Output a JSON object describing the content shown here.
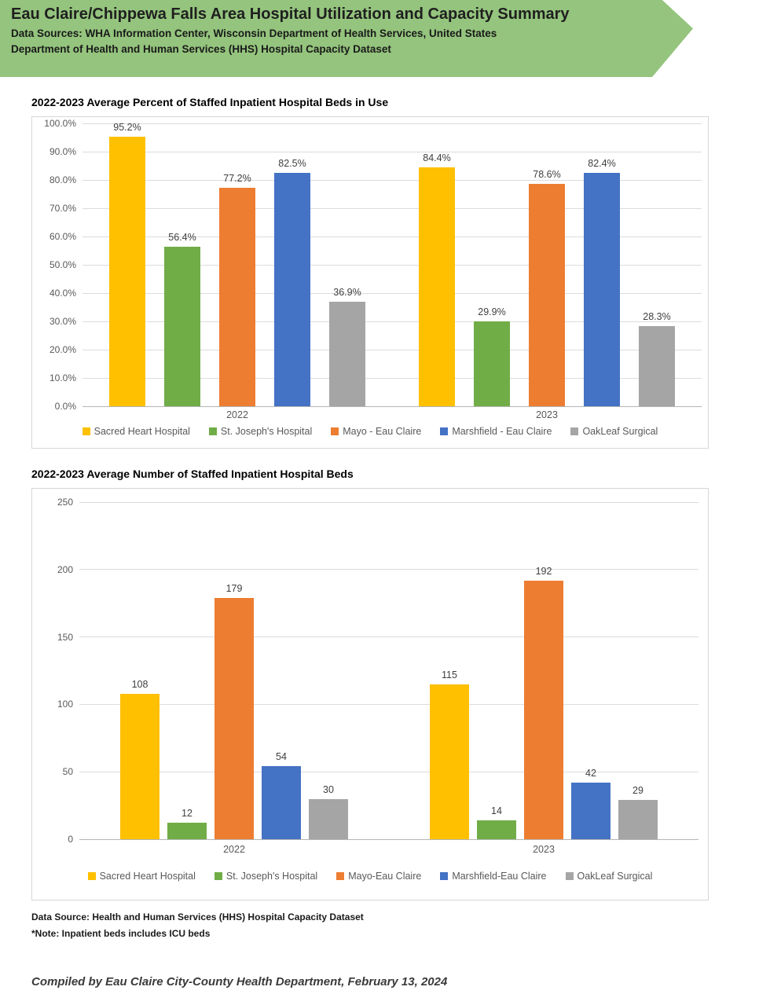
{
  "banner": {
    "title": "Eau Claire/Chippewa Falls Area Hospital Utilization and Capacity Summary",
    "subtitle_line1": "Data Sources: WHA Information Center, Wisconsin Department of Health Services, United States",
    "subtitle_line2": "Department of Health and Human Services (HHS) Hospital Capacity Dataset",
    "color": "#94c47d"
  },
  "chart_data": [
    {
      "type": "bar",
      "title": "2022-2023 Average Percent of Staffed Inpatient Hospital Beds in Use",
      "categories": [
        "2022",
        "2023"
      ],
      "series": [
        {
          "name": "Sacred Heart Hospital",
          "color": "#FFC000",
          "values": [
            95.2,
            84.4
          ],
          "labels": [
            "95.2%",
            "84.4%"
          ]
        },
        {
          "name": "St. Joseph's Hospital",
          "color": "#70AD47",
          "values": [
            56.4,
            29.9
          ],
          "labels": [
            "56.4%",
            "29.9%"
          ]
        },
        {
          "name": "Mayo - Eau Claire",
          "color": "#ED7D31",
          "values": [
            77.2,
            78.6
          ],
          "labels": [
            "77.2%",
            "78.6%"
          ]
        },
        {
          "name": "Marshfield - Eau Claire",
          "color": "#4472C4",
          "values": [
            82.5,
            82.4
          ],
          "labels": [
            "82.5%",
            "82.4%"
          ]
        },
        {
          "name": "OakLeaf Surgical",
          "color": "#A5A5A5",
          "values": [
            36.9,
            28.3
          ],
          "labels": [
            "36.9%",
            "28.3%"
          ]
        }
      ],
      "xlabel": "",
      "ylabel": "",
      "ylim": [
        0,
        100
      ],
      "ytick_labels": [
        "0.0%",
        "10.0%",
        "20.0%",
        "30.0%",
        "40.0%",
        "50.0%",
        "60.0%",
        "70.0%",
        "80.0%",
        "90.0%",
        "100.0%"
      ],
      "grid": true,
      "legend_position": "bottom"
    },
    {
      "type": "bar",
      "title": "2022-2023 Average Number of Staffed Inpatient Hospital Beds",
      "categories": [
        "2022",
        "2023"
      ],
      "series": [
        {
          "name": "Sacred Heart Hospital",
          "color": "#FFC000",
          "values": [
            108,
            115
          ],
          "labels": [
            "108",
            "115"
          ]
        },
        {
          "name": "St. Joseph's Hospital",
          "color": "#70AD47",
          "values": [
            12,
            14
          ],
          "labels": [
            "12",
            "14"
          ]
        },
        {
          "name": "Mayo-Eau Claire",
          "color": "#ED7D31",
          "values": [
            179,
            192
          ],
          "labels": [
            "179",
            "192"
          ]
        },
        {
          "name": "Marshfield-Eau Claire",
          "color": "#4472C4",
          "values": [
            54,
            42
          ],
          "labels": [
            "54",
            "42"
          ]
        },
        {
          "name": "OakLeaf Surgical",
          "color": "#A5A5A5",
          "values": [
            30,
            29
          ],
          "labels": [
            "30",
            "29"
          ]
        }
      ],
      "xlabel": "",
      "ylabel": "",
      "ylim": [
        0,
        250
      ],
      "ytick_labels": [
        "0",
        "50",
        "100",
        "150",
        "200",
        "250"
      ],
      "grid": true,
      "legend_position": "bottom"
    }
  ],
  "footnotes": {
    "data_source": "Data Source: Health and Human Services (HHS) Hospital Capacity Dataset",
    "note": "*Note: Inpatient beds includes ICU beds"
  },
  "footer": {
    "compiled_by": "Compiled by Eau Claire City-County Health Department, February 13, 2024"
  }
}
